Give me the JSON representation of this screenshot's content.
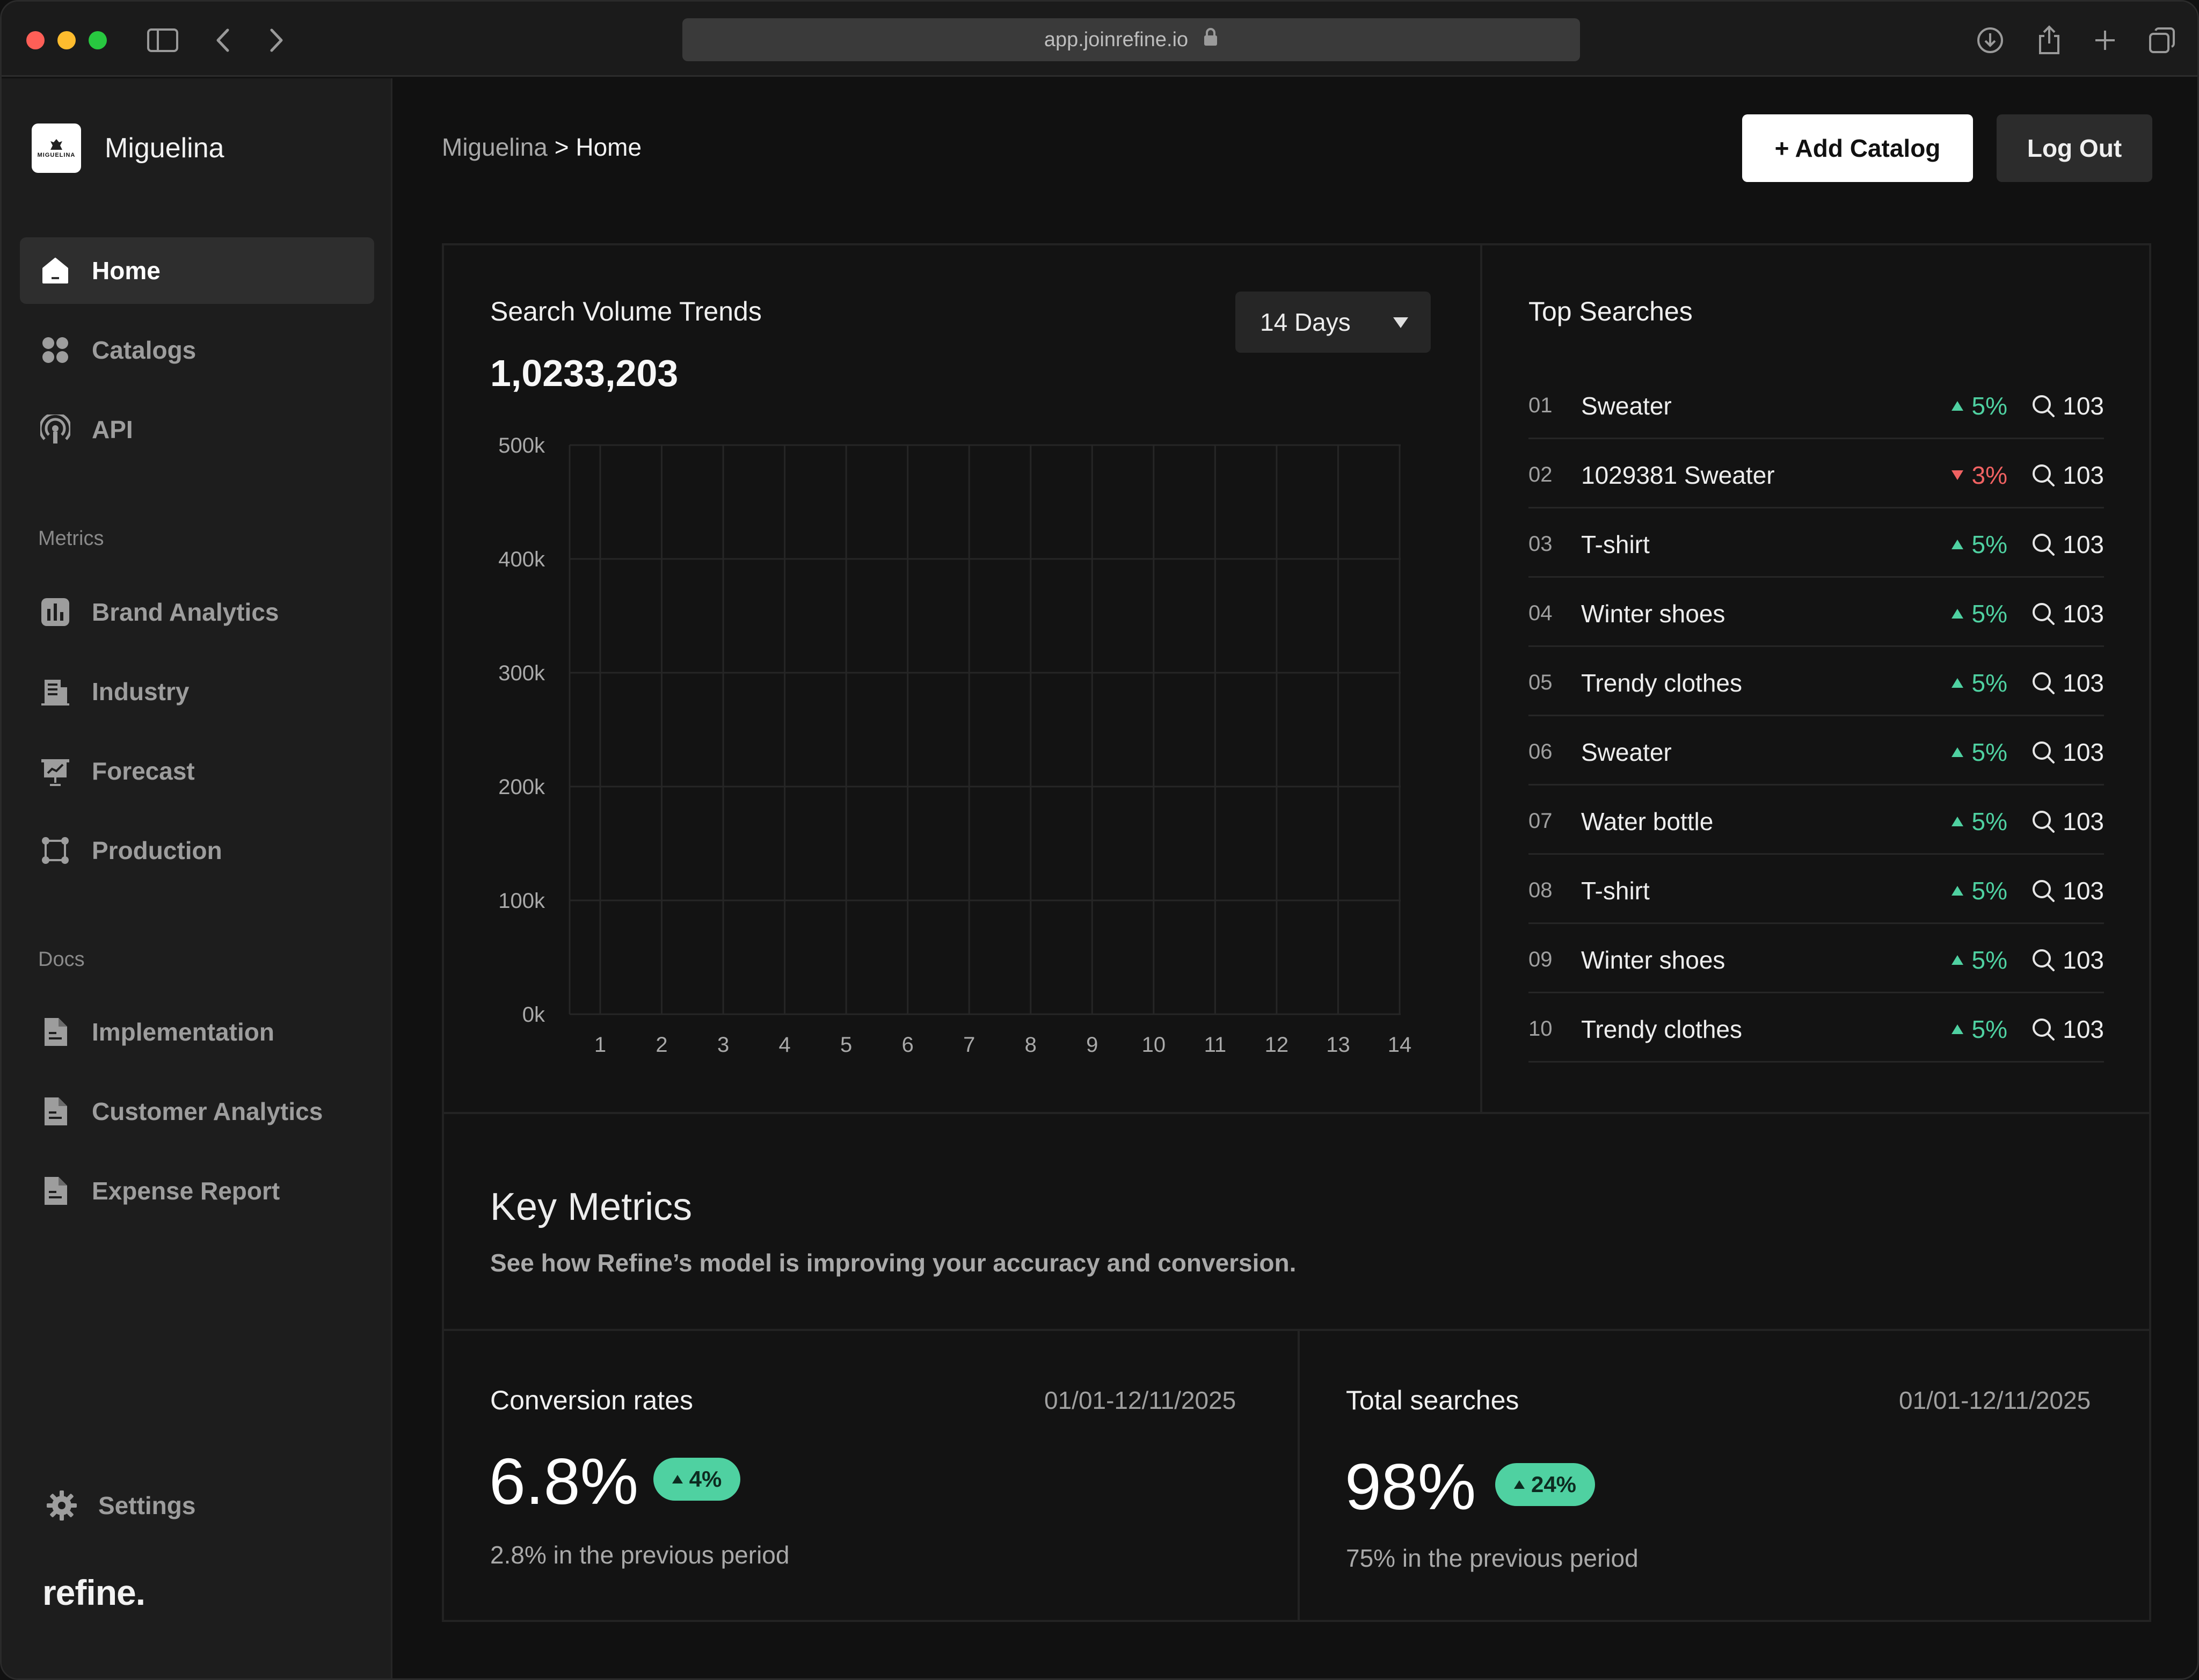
{
  "browser": {
    "url": "app.joinrefine.io"
  },
  "sidebar": {
    "brand_name": "Miguelina",
    "brand_logo_text": "MIGUELINA",
    "nav": [
      {
        "label": "Home",
        "icon": "home-icon",
        "active": true
      },
      {
        "label": "Catalogs",
        "icon": "grid-icon"
      },
      {
        "label": "API",
        "icon": "broadcast-icon"
      }
    ],
    "metrics_label": "Metrics",
    "metrics": [
      {
        "label": "Brand Analytics",
        "icon": "bar-chart-icon"
      },
      {
        "label": "Industry",
        "icon": "building-icon"
      },
      {
        "label": "Forecast",
        "icon": "presentation-icon"
      },
      {
        "label": "Production",
        "icon": "crop-icon"
      }
    ],
    "docs_label": "Docs",
    "docs": [
      {
        "label": "Implementation",
        "icon": "document-icon"
      },
      {
        "label": "Customer Analytics",
        "icon": "document-icon"
      },
      {
        "label": "Expense Report",
        "icon": "document-icon"
      }
    ],
    "settings_label": "Settings",
    "footer_logo": "refine."
  },
  "header": {
    "breadcrumb_root": "Miguelina",
    "breadcrumb_sep": ">",
    "breadcrumb_current": "Home",
    "add_catalog": "+ Add Catalog",
    "log_out": "Log Out"
  },
  "search_volume": {
    "title": "Search Volume Trends",
    "total": "1,0233,203",
    "range_selected": "14 Days"
  },
  "chart_data": {
    "type": "line",
    "title": "Search Volume Trends",
    "xlabel": "",
    "ylabel": "",
    "x": [
      1,
      2,
      3,
      4,
      5,
      6,
      7,
      8,
      9,
      10,
      11,
      12,
      13,
      14
    ],
    "series": [],
    "y_ticks": [
      "500k",
      "400k",
      "300k",
      "200k",
      "100k",
      "0k"
    ],
    "ylim": [
      0,
      500000
    ],
    "grid": true
  },
  "top_searches": {
    "title": "Top Searches",
    "rows": [
      {
        "rank": "01",
        "term": "Sweater",
        "delta": "5%",
        "direction": "up",
        "count": "103"
      },
      {
        "rank": "02",
        "term": "1029381 Sweater",
        "delta": "3%",
        "direction": "down",
        "count": "103"
      },
      {
        "rank": "03",
        "term": "T-shirt",
        "delta": "5%",
        "direction": "up",
        "count": "103"
      },
      {
        "rank": "04",
        "term": "Winter shoes",
        "delta": "5%",
        "direction": "up",
        "count": "103"
      },
      {
        "rank": "05",
        "term": "Trendy clothes",
        "delta": "5%",
        "direction": "up",
        "count": "103"
      },
      {
        "rank": "06",
        "term": "Sweater",
        "delta": "5%",
        "direction": "up",
        "count": "103"
      },
      {
        "rank": "07",
        "term": "Water bottle",
        "delta": "5%",
        "direction": "up",
        "count": "103"
      },
      {
        "rank": "08",
        "term": "T-shirt",
        "delta": "5%",
        "direction": "up",
        "count": "103"
      },
      {
        "rank": "09",
        "term": "Winter shoes",
        "delta": "5%",
        "direction": "up",
        "count": "103"
      },
      {
        "rank": "10",
        "term": "Trendy clothes",
        "delta": "5%",
        "direction": "up",
        "count": "103"
      }
    ]
  },
  "key_metrics": {
    "title": "Key Metrics",
    "subtitle": "See how Refine’s model is improving your accuracy and conversion.",
    "cards": [
      {
        "label": "Conversion rates",
        "date": "01/01-12/11/2025",
        "value": "6.8%",
        "change": "4%",
        "previous": "2.8% in the previous period"
      },
      {
        "label": "Total searches",
        "date": "01/01-12/11/2025",
        "value": "98%",
        "change": "24%",
        "previous": "75% in the previous period"
      }
    ]
  },
  "colors": {
    "positive": "#4fd1a1",
    "negative": "#f06262",
    "background": "#111111",
    "sidebar": "#1d1d1d"
  }
}
